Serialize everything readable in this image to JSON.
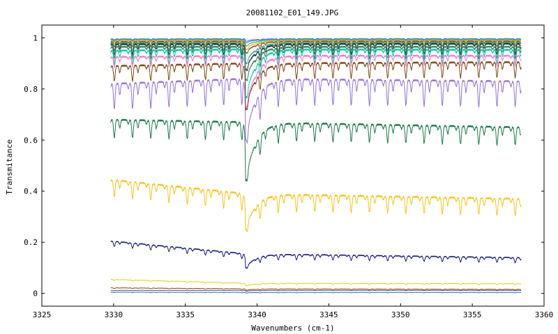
{
  "chart_data": {
    "type": "line",
    "title": "20081102_E01_149.JPG",
    "xlabel": "Wavenumbers (cm-1)",
    "ylabel": "Transmitance",
    "xlim": [
      3325,
      3360
    ],
    "ylim": [
      -0.05,
      1.05
    ],
    "x_ticks": [
      3325,
      3330,
      3335,
      3340,
      3345,
      3350,
      3355,
      3360
    ],
    "y_ticks": [
      0,
      0.2,
      0.4,
      0.6,
      0.8,
      1
    ],
    "x_range": [
      3329.8,
      3358.4
    ],
    "grid": false,
    "legend": "none",
    "main_dip_position": 3339.2,
    "series": [
      {
        "color": "#6a5acd",
        "start": 0.996,
        "end": 0.997,
        "base": 0.997,
        "dip": 0.004,
        "main_dip": 0.01
      },
      {
        "color": "#1e90ff",
        "start": 0.995,
        "end": 0.996,
        "base": 0.996,
        "dip": 0.006,
        "main_dip": 0.015
      },
      {
        "color": "#3cb44b",
        "start": 0.993,
        "end": 0.994,
        "base": 0.994,
        "dip": 0.01,
        "main_dip": 0.025
      },
      {
        "color": "#e6b422",
        "start": 0.99,
        "end": 0.991,
        "base": 0.991,
        "dip": 0.015,
        "main_dip": 0.035
      },
      {
        "color": "#8b4513",
        "start": 0.985,
        "end": 0.987,
        "base": 0.987,
        "dip": 0.02,
        "main_dip": 0.045
      },
      {
        "color": "#20b2aa",
        "start": 0.98,
        "end": 0.982,
        "base": 0.981,
        "dip": 0.03,
        "main_dip": 0.08
      },
      {
        "color": "#333333",
        "start": 0.975,
        "end": 0.977,
        "base": 0.976,
        "dip": 0.04,
        "main_dip": 0.1
      },
      {
        "color": "#2e8b57",
        "start": 0.965,
        "end": 0.965,
        "base": 0.965,
        "dip": 0.045,
        "main_dip": 0.13
      },
      {
        "color": "#00c7b0",
        "start": 0.95,
        "end": 0.953,
        "base": 0.955,
        "dip": 0.055,
        "main_dip": 0.19
      },
      {
        "color": "#ff77cc",
        "start": 0.925,
        "end": 0.93,
        "base": 0.93,
        "dip": 0.04,
        "main_dip": 0.21
      },
      {
        "color": "#7a4a12",
        "start": 0.89,
        "end": 0.905,
        "base": 0.9,
        "dip": 0.06,
        "main_dip": 0.18
      },
      {
        "color": "#9370db",
        "start": 0.82,
        "end": 0.83,
        "base": 0.84,
        "dip": 0.1,
        "main_dip": 0.24
      },
      {
        "color": "#1a7a4a",
        "start": 0.68,
        "end": 0.65,
        "base": 0.67,
        "dip": 0.07,
        "main_dip": 0.23
      },
      {
        "color": "#f5c518",
        "start": 0.445,
        "end": 0.37,
        "base": 0.39,
        "dip": 0.065,
        "main_dip": 0.14
      },
      {
        "color": "#1a1a8c",
        "start": 0.205,
        "end": 0.14,
        "base": 0.155,
        "dip": 0.02,
        "main_dip": 0.055
      },
      {
        "color": "#e6d200",
        "start": 0.055,
        "end": 0.038,
        "base": 0.04,
        "dip": 0.004,
        "main_dip": 0.01
      },
      {
        "color": "#8b4513",
        "start": 0.022,
        "end": 0.016,
        "base": 0.018,
        "dip": 0.003,
        "main_dip": 0.005
      },
      {
        "color": "#555555",
        "start": 0.012,
        "end": 0.012,
        "base": 0.012,
        "dip": 0.002,
        "main_dip": 0.003
      },
      {
        "color": "#2a60ff",
        "start": 0.005,
        "end": 0.004,
        "base": 0.004,
        "dip": 0.002,
        "main_dip": 0.002
      }
    ]
  }
}
